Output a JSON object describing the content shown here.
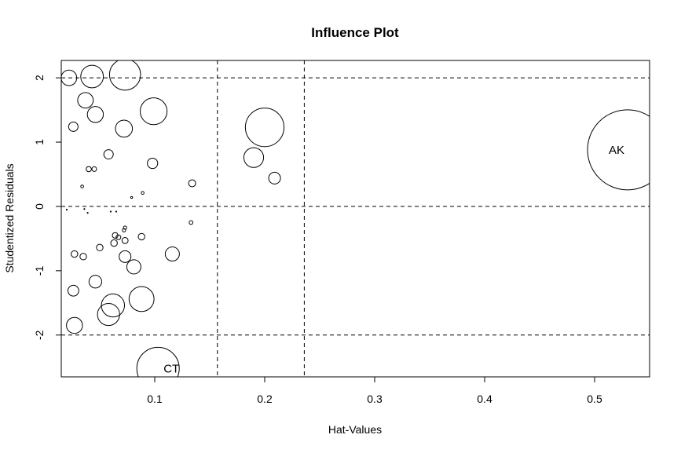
{
  "chart_data": {
    "type": "scatter",
    "title": "Influence Plot",
    "xlabel": "Hat-Values",
    "ylabel": "Studentized Residuals",
    "xlim": [
      0.015,
      0.55
    ],
    "ylim": [
      -2.65,
      2.27
    ],
    "x_ticks": [
      0.1,
      0.2,
      0.3,
      0.4,
      0.5
    ],
    "x_tick_labels": [
      "0.1",
      "0.2",
      "0.3",
      "0.4",
      "0.5"
    ],
    "y_ticks": [
      -2,
      -1,
      0,
      1,
      2
    ],
    "y_tick_labels": [
      "-2",
      "-1",
      "0",
      "1",
      "2"
    ],
    "grid": false,
    "reference_lines": {
      "horizontal": [
        -2,
        0,
        2
      ],
      "vertical": [
        0.157,
        0.236
      ]
    },
    "size_encoding": "Cook's distance (circle area)",
    "points": [
      {
        "x": 0.022,
        "y": 2.0,
        "size": 0.33,
        "label": ""
      },
      {
        "x": 0.043,
        "y": 2.02,
        "size": 0.48,
        "label": ""
      },
      {
        "x": 0.073,
        "y": 2.05,
        "size": 0.66,
        "label": ""
      },
      {
        "x": 0.037,
        "y": 1.65,
        "size": 0.33,
        "label": ""
      },
      {
        "x": 0.046,
        "y": 1.43,
        "size": 0.34,
        "label": ""
      },
      {
        "x": 0.099,
        "y": 1.48,
        "size": 0.57,
        "label": ""
      },
      {
        "x": 0.026,
        "y": 1.24,
        "size": 0.2,
        "label": ""
      },
      {
        "x": 0.072,
        "y": 1.21,
        "size": 0.36,
        "label": ""
      },
      {
        "x": 0.058,
        "y": 0.81,
        "size": 0.2,
        "label": ""
      },
      {
        "x": 0.04,
        "y": 0.58,
        "size": 0.11,
        "label": ""
      },
      {
        "x": 0.045,
        "y": 0.58,
        "size": 0.1,
        "label": ""
      },
      {
        "x": 0.098,
        "y": 0.67,
        "size": 0.22,
        "label": ""
      },
      {
        "x": 0.034,
        "y": 0.31,
        "size": 0.06,
        "label": ""
      },
      {
        "x": 0.089,
        "y": 0.21,
        "size": 0.06,
        "label": ""
      },
      {
        "x": 0.079,
        "y": 0.14,
        "size": 0.04,
        "label": ""
      },
      {
        "x": 0.134,
        "y": 0.36,
        "size": 0.15,
        "label": ""
      },
      {
        "x": 0.2,
        "y": 1.23,
        "size": 0.82,
        "label": ""
      },
      {
        "x": 0.19,
        "y": 0.76,
        "size": 0.42,
        "label": ""
      },
      {
        "x": 0.209,
        "y": 0.44,
        "size": 0.25,
        "label": ""
      },
      {
        "x": 0.53,
        "y": 0.88,
        "size": 1.7,
        "label": "AK"
      },
      {
        "x": 0.02,
        "y": -0.05,
        "size": 0.02,
        "label": ""
      },
      {
        "x": 0.036,
        "y": -0.04,
        "size": 0.02,
        "label": ""
      },
      {
        "x": 0.039,
        "y": -0.1,
        "size": 0.02,
        "label": ""
      },
      {
        "x": 0.06,
        "y": -0.08,
        "size": 0.02,
        "label": ""
      },
      {
        "x": 0.065,
        "y": -0.08,
        "size": 0.02,
        "label": ""
      },
      {
        "x": 0.133,
        "y": -0.25,
        "size": 0.08,
        "label": ""
      },
      {
        "x": 0.073,
        "y": -0.33,
        "size": 0.07,
        "label": ""
      },
      {
        "x": 0.072,
        "y": -0.37,
        "size": 0.07,
        "label": ""
      },
      {
        "x": 0.064,
        "y": -0.45,
        "size": 0.12,
        "label": ""
      },
      {
        "x": 0.067,
        "y": -0.48,
        "size": 0.1,
        "label": ""
      },
      {
        "x": 0.073,
        "y": -0.53,
        "size": 0.13,
        "label": ""
      },
      {
        "x": 0.088,
        "y": -0.47,
        "size": 0.14,
        "label": ""
      },
      {
        "x": 0.063,
        "y": -0.57,
        "size": 0.14,
        "label": ""
      },
      {
        "x": 0.05,
        "y": -0.64,
        "size": 0.14,
        "label": ""
      },
      {
        "x": 0.027,
        "y": -0.74,
        "size": 0.14,
        "label": ""
      },
      {
        "x": 0.035,
        "y": -0.78,
        "size": 0.14,
        "label": ""
      },
      {
        "x": 0.073,
        "y": -0.78,
        "size": 0.25,
        "label": ""
      },
      {
        "x": 0.116,
        "y": -0.74,
        "size": 0.3,
        "label": ""
      },
      {
        "x": 0.081,
        "y": -0.94,
        "size": 0.3,
        "label": ""
      },
      {
        "x": 0.046,
        "y": -1.17,
        "size": 0.27,
        "label": ""
      },
      {
        "x": 0.026,
        "y": -1.31,
        "size": 0.23,
        "label": ""
      },
      {
        "x": 0.062,
        "y": -1.54,
        "size": 0.49,
        "label": ""
      },
      {
        "x": 0.088,
        "y": -1.44,
        "size": 0.53,
        "label": ""
      },
      {
        "x": 0.058,
        "y": -1.68,
        "size": 0.47,
        "label": ""
      },
      {
        "x": 0.027,
        "y": -1.85,
        "size": 0.34,
        "label": ""
      },
      {
        "x": 0.103,
        "y": -2.52,
        "size": 0.9,
        "label": "CT"
      }
    ]
  }
}
